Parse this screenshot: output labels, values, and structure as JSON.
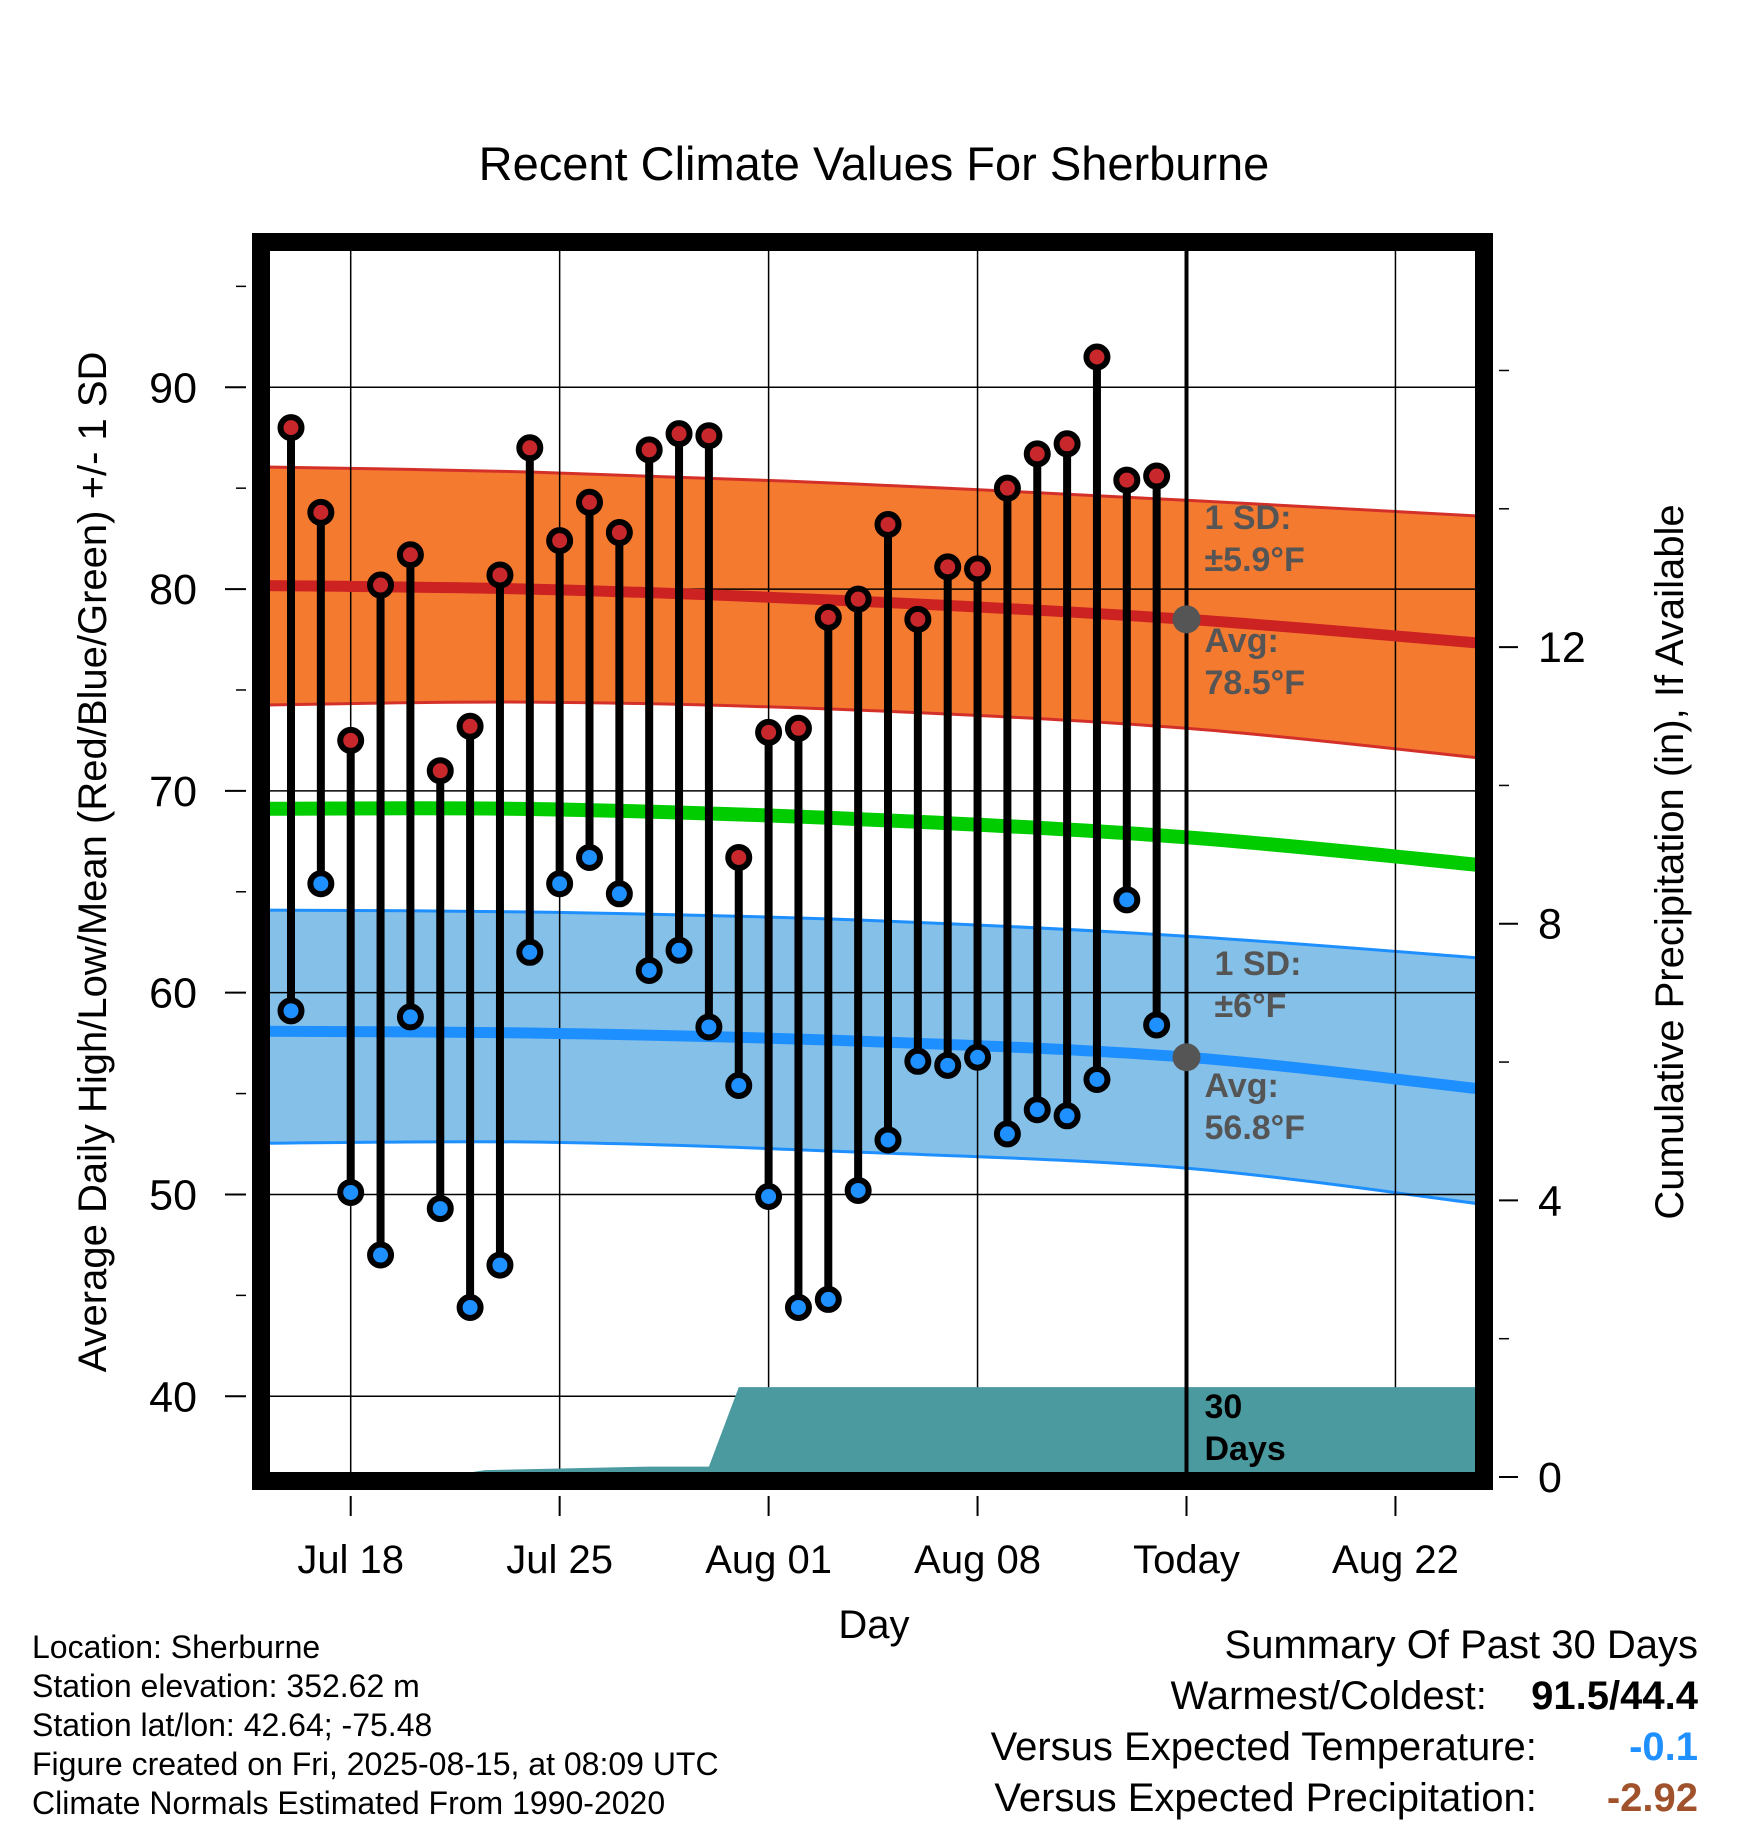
{
  "chart_data": {
    "type": "line",
    "title": "Recent Climate Values For Sherburne",
    "xlabel": "Day",
    "ylabel": "Average Daily High/Low/Mean (Red/Blue/Green) +/- 1 SD",
    "y2label": "Cumulative Precipitation (in), If Available",
    "ylim": [
      36,
      97
    ],
    "y2lim": [
      0,
      17.8
    ],
    "xlim": [
      -34.3,
      11
    ],
    "x_units": "days relative to today (Aug 15)",
    "x_ticks": [
      {
        "x": -28,
        "label": "Jul 18"
      },
      {
        "x": -21,
        "label": "Jul 25"
      },
      {
        "x": -14,
        "label": "Aug 01"
      },
      {
        "x": -7,
        "label": "Aug 08"
      },
      {
        "x": 0,
        "label": "Today"
      },
      {
        "x": 7,
        "label": "Aug 22"
      }
    ],
    "y_ticks": [
      40,
      50,
      60,
      70,
      80,
      90
    ],
    "y2_ticks": [
      0,
      4,
      8,
      12
    ],
    "grid": true,
    "series": [
      {
        "name": "High",
        "color": "#c8282c",
        "x": [
          -30,
          -29,
          -28,
          -27,
          -26,
          -25,
          -24,
          -23,
          -22,
          -21,
          -20,
          -19,
          -18,
          -17,
          -16,
          -15,
          -14,
          -13,
          -12,
          -11,
          -10,
          -9,
          -8,
          -7,
          -6,
          -5,
          -4,
          -3,
          -2,
          -1
        ],
        "values": [
          88.0,
          83.8,
          72.5,
          80.2,
          81.7,
          71.0,
          73.2,
          80.7,
          87.0,
          82.4,
          84.3,
          82.8,
          86.9,
          87.7,
          87.6,
          66.7,
          72.9,
          73.1,
          78.6,
          79.5,
          83.2,
          78.5,
          81.1,
          81.0,
          85.0,
          86.7,
          87.2,
          91.5,
          85.4,
          85.6
        ]
      },
      {
        "name": "Low",
        "color": "#1e90ff",
        "x": [
          -30,
          -29,
          -28,
          -27,
          -26,
          -25,
          -24,
          -23,
          -22,
          -21,
          -20,
          -19,
          -18,
          -17,
          -16,
          -15,
          -14,
          -13,
          -12,
          -11,
          -10,
          -9,
          -8,
          -7,
          -6,
          -5,
          -4,
          -3,
          -2,
          -1
        ],
        "values": [
          59.1,
          65.4,
          50.1,
          47.0,
          58.8,
          49.3,
          44.4,
          46.5,
          62.0,
          65.4,
          66.7,
          64.9,
          61.1,
          62.1,
          58.3,
          55.4,
          49.9,
          44.4,
          44.8,
          50.2,
          52.7,
          56.6,
          56.4,
          56.8,
          53.0,
          54.2,
          53.9,
          55.7,
          64.6,
          58.4
        ]
      },
      {
        "name": "Avg High",
        "color": "#cc2222",
        "x": [
          -33,
          -22,
          -11,
          0,
          10
        ],
        "values": [
          80.2,
          80.0,
          79.4,
          78.5,
          77.3
        ]
      },
      {
        "name": "Avg Low",
        "color": "#1e8fff",
        "x": [
          -33,
          -22,
          -11,
          0,
          10
        ],
        "values": [
          58.1,
          58.0,
          57.6,
          56.8,
          55.2
        ]
      },
      {
        "name": "Avg Mean",
        "color": "#00cc00",
        "x": [
          -33,
          -22,
          -11,
          0,
          10
        ],
        "values": [
          69.1,
          69.1,
          68.6,
          67.7,
          66.3
        ]
      },
      {
        "name": "High +1 SD",
        "x": [
          -33,
          -22,
          -11,
          0,
          10
        ],
        "values": [
          86.1,
          85.8,
          85.2,
          84.4,
          83.6
        ]
      },
      {
        "name": "High -1 SD",
        "x": [
          -33,
          -22,
          -11,
          0,
          10
        ],
        "values": [
          74.2,
          74.4,
          74.0,
          73.1,
          71.6
        ]
      },
      {
        "name": "Low +1 SD",
        "x": [
          -33,
          -22,
          -11,
          0,
          10
        ],
        "values": [
          64.1,
          64.0,
          63.6,
          62.8,
          61.7
        ]
      },
      {
        "name": "Low -1 SD",
        "x": [
          -33,
          -22,
          -11,
          0,
          10
        ],
        "values": [
          52.5,
          52.6,
          52.1,
          51.3,
          49.5
        ]
      },
      {
        "name": "Cumulative Precipitation",
        "color": "#4a9aa0",
        "axis": "right",
        "x": [
          -25,
          -23.5,
          -18,
          -16,
          -15,
          11
        ],
        "values": [
          0,
          0.1,
          0.15,
          0.15,
          1.3,
          1.3
        ]
      }
    ],
    "annotations": {
      "high_sd": "1 SD:",
      "high_sd_value": "±5.9°F",
      "high_avg": "Avg:",
      "high_avg_value": "78.5°F",
      "low_sd": "1 SD:",
      "low_sd_value": "±6°F",
      "low_avg": "Avg:",
      "low_avg_value": "56.8°F",
      "days_num": "30",
      "days_word": "Days"
    }
  },
  "location": {
    "line1": "Location: Sherburne",
    "line2": "Station elevation: 352.62 m",
    "line3": "Station lat/lon: 42.64; -75.48",
    "line4": "Figure created on Fri, 2025-08-15, at 08:09 UTC",
    "line5": "Climate Normals Estimated From 1990-2020"
  },
  "summary": {
    "title": "Summary Of Past 30 Days",
    "warm_cold_label": "Warmest/Coldest:",
    "warm_cold_value": "91.5/44.4",
    "temp_label": "Versus Expected Temperature:",
    "temp_value": "-0.1",
    "prec_label": "Versus Expected Precipitation:",
    "prec_value": "-2.92",
    "temp_color": "#1e90ff",
    "prec_color": "#a0522d"
  }
}
